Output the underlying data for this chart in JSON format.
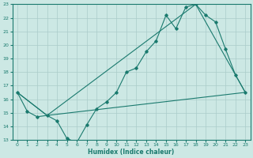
{
  "title": "",
  "xlabel": "Humidex (Indice chaleur)",
  "xlim": [
    -0.5,
    23.5
  ],
  "ylim": [
    13,
    23
  ],
  "xticks": [
    0,
    1,
    2,
    3,
    4,
    5,
    6,
    7,
    8,
    9,
    10,
    11,
    12,
    13,
    14,
    15,
    16,
    17,
    18,
    19,
    20,
    21,
    22,
    23
  ],
  "yticks": [
    13,
    14,
    15,
    16,
    17,
    18,
    19,
    20,
    21,
    22,
    23
  ],
  "bg_color": "#cce8e4",
  "grid_color": "#aaccca",
  "line_color": "#1a7a6e",
  "series1_x": [
    0,
    1,
    2,
    3,
    4,
    5,
    6,
    7,
    8,
    9,
    10,
    11,
    12,
    13,
    14,
    15,
    16,
    17,
    18,
    19,
    20,
    21,
    22,
    23
  ],
  "series1_y": [
    16.5,
    15.1,
    14.7,
    14.8,
    14.4,
    13.1,
    12.8,
    14.1,
    15.3,
    15.8,
    16.5,
    18.0,
    18.3,
    19.5,
    20.3,
    22.2,
    21.2,
    22.8,
    23.0,
    22.2,
    21.7,
    19.7,
    17.8,
    16.5
  ],
  "series2_x": [
    0,
    3,
    23
  ],
  "series2_y": [
    16.5,
    14.8,
    16.5
  ],
  "series3_x": [
    0,
    3,
    18,
    23
  ],
  "series3_y": [
    16.5,
    14.8,
    23.0,
    16.5
  ]
}
